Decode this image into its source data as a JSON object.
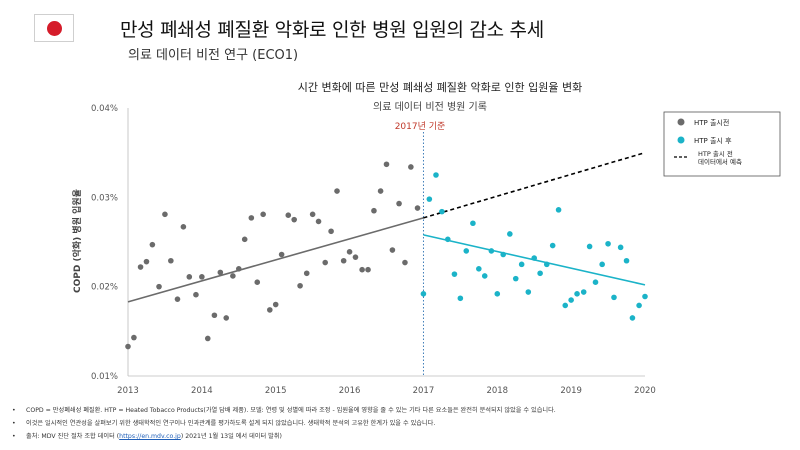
{
  "header": {
    "title": "만성 폐쇄성 폐질환 악화로 인한 병원 입원의 감소 추세",
    "subtitle": "의료 데이터 비전 연구 (ECO1)",
    "flag_icon": "japan-flag-icon",
    "flag_color": "#d51c2a"
  },
  "chart_data": {
    "type": "scatter",
    "title": "시간 변화에 따른 만성 폐쇄성 폐질환 악화로 인한 입원율 변화",
    "subtitle": "의료 데이터 비전 병원 기록",
    "ylabel": "COPD (악화) 병원 입원율",
    "xlabel": "",
    "xlim": [
      2013,
      2020
    ],
    "ylim": [
      0.01,
      0.04
    ],
    "x_ticks": [
      2013,
      2014,
      2015,
      2016,
      2017,
      2018,
      2019,
      2020
    ],
    "x_tick_labels": [
      "2013",
      "2014",
      "2015",
      "2016",
      "2017",
      "2018",
      "2019",
      "2020"
    ],
    "y_ticks": [
      0.01,
      0.02,
      0.03,
      0.04
    ],
    "y_tick_labels": [
      "0.01%",
      "0.02%",
      "0.03%",
      "0.04%"
    ],
    "grid": false,
    "legend_position": "top-right",
    "annotation": {
      "text": "2017년 기준",
      "x": 2017,
      "color": "#c0392b"
    },
    "series": [
      {
        "name": "HTP 출시전",
        "color": "#6b6b6b",
        "points": [
          [
            2013.0,
            0.0133
          ],
          [
            2013.08,
            0.0143
          ],
          [
            2013.17,
            0.0222
          ],
          [
            2013.25,
            0.0228
          ],
          [
            2013.33,
            0.0247
          ],
          [
            2013.42,
            0.02
          ],
          [
            2013.5,
            0.0281
          ],
          [
            2013.58,
            0.0229
          ],
          [
            2013.67,
            0.0186
          ],
          [
            2013.75,
            0.0267
          ],
          [
            2013.83,
            0.0211
          ],
          [
            2013.92,
            0.0191
          ],
          [
            2014.0,
            0.0211
          ],
          [
            2014.08,
            0.0142
          ],
          [
            2014.17,
            0.0168
          ],
          [
            2014.25,
            0.0216
          ],
          [
            2014.33,
            0.0165
          ],
          [
            2014.42,
            0.0212
          ],
          [
            2014.5,
            0.022
          ],
          [
            2014.58,
            0.0253
          ],
          [
            2014.67,
            0.0277
          ],
          [
            2014.75,
            0.0205
          ],
          [
            2014.83,
            0.0281
          ],
          [
            2014.92,
            0.0174
          ],
          [
            2015.0,
            0.018
          ],
          [
            2015.08,
            0.0236
          ],
          [
            2015.17,
            0.028
          ],
          [
            2015.25,
            0.0275
          ],
          [
            2015.33,
            0.0201
          ],
          [
            2015.42,
            0.0215
          ],
          [
            2015.5,
            0.0281
          ],
          [
            2015.58,
            0.0273
          ],
          [
            2015.67,
            0.0227
          ],
          [
            2015.75,
            0.0262
          ],
          [
            2015.83,
            0.0307
          ],
          [
            2015.92,
            0.0229
          ],
          [
            2016.0,
            0.0239
          ],
          [
            2016.08,
            0.0233
          ],
          [
            2016.17,
            0.0219
          ],
          [
            2016.25,
            0.0219
          ],
          [
            2016.33,
            0.0285
          ],
          [
            2016.42,
            0.0307
          ],
          [
            2016.5,
            0.0337
          ],
          [
            2016.58,
            0.0241
          ],
          [
            2016.67,
            0.0293
          ],
          [
            2016.75,
            0.0227
          ],
          [
            2016.83,
            0.0334
          ],
          [
            2016.92,
            0.0288
          ]
        ],
        "trend": [
          [
            2013.0,
            0.0183
          ],
          [
            2017.0,
            0.0277
          ]
        ]
      },
      {
        "name": "HTP 출시 후",
        "color": "#1bb3c8",
        "points": [
          [
            2017.0,
            0.0192
          ],
          [
            2017.08,
            0.0298
          ],
          [
            2017.17,
            0.0325
          ],
          [
            2017.25,
            0.0284
          ],
          [
            2017.33,
            0.0253
          ],
          [
            2017.42,
            0.0214
          ],
          [
            2017.5,
            0.0187
          ],
          [
            2017.58,
            0.024
          ],
          [
            2017.67,
            0.0271
          ],
          [
            2017.75,
            0.022
          ],
          [
            2017.83,
            0.0212
          ],
          [
            2017.92,
            0.024
          ],
          [
            2018.0,
            0.0192
          ],
          [
            2018.08,
            0.0236
          ],
          [
            2018.17,
            0.0259
          ],
          [
            2018.25,
            0.0209
          ],
          [
            2018.33,
            0.0225
          ],
          [
            2018.42,
            0.0194
          ],
          [
            2018.5,
            0.0232
          ],
          [
            2018.58,
            0.0215
          ],
          [
            2018.67,
            0.0225
          ],
          [
            2018.75,
            0.0246
          ],
          [
            2018.83,
            0.0286
          ],
          [
            2018.92,
            0.0179
          ],
          [
            2019.0,
            0.0185
          ],
          [
            2019.08,
            0.0192
          ],
          [
            2019.17,
            0.0194
          ],
          [
            2019.25,
            0.0245
          ],
          [
            2019.33,
            0.0205
          ],
          [
            2019.42,
            0.0225
          ],
          [
            2019.5,
            0.0248
          ],
          [
            2019.58,
            0.0188
          ],
          [
            2019.67,
            0.0244
          ],
          [
            2019.75,
            0.0229
          ],
          [
            2019.83,
            0.0165
          ],
          [
            2019.92,
            0.0179
          ],
          [
            2020.0,
            0.0189
          ]
        ],
        "trend": [
          [
            2017.0,
            0.0258
          ],
          [
            2020.0,
            0.0202
          ]
        ]
      },
      {
        "name": "HTP 출시 전 데이터에서 예측",
        "color": "#000000",
        "dashed": true,
        "trend": [
          [
            2017.0,
            0.0277
          ],
          [
            2020.0,
            0.035
          ]
        ]
      }
    ]
  },
  "footnotes": [
    {
      "bullet": "•",
      "text": "COPD = 만성폐쇄성 폐질환. HTP = Heated Tobacco Products(가열 담배 제품). 모델: 연령 및 성별에 따라 조정 - 입원율에 영향을 줄 수 있는 기타 다른 요소들은 완전히 분석되지 않았을 수 있습니다."
    },
    {
      "bullet": "•",
      "text": "이것은 일시적인 연관성을 살펴보기 위한 생태학적인 연구이나 인과관계를 평가하도록 설계 되지 않았습니다. 생태학적 분석의 고유한 한계가 있을 수 있습니다."
    },
    {
      "bullet": "•",
      "text_before": "출처: MDV 진단 절차 조합 데이터 (",
      "link": "https://en.mdv.co.jp",
      "text_after": ") 2021년 1월 13일 에서 데이터 발취)"
    }
  ]
}
